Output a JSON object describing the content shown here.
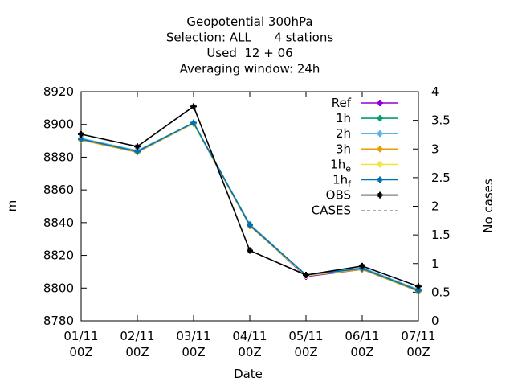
{
  "chart_data": {
    "type": "line",
    "title_lines": [
      "Geopotential 300hPa",
      "Selection: ALL      4 stations",
      "Used  12 + 06",
      "Averaging window: 24h"
    ],
    "xlabel": "Date",
    "ylabel": "m",
    "y2label": "No cases",
    "x_categories": [
      {
        "top": "01/11",
        "bottom": "00Z"
      },
      {
        "top": "02/11",
        "bottom": "00Z"
      },
      {
        "top": "03/11",
        "bottom": "00Z"
      },
      {
        "top": "04/11",
        "bottom": "00Z"
      },
      {
        "top": "05/11",
        "bottom": "00Z"
      },
      {
        "top": "06/11",
        "bottom": "00Z"
      },
      {
        "top": "07/11",
        "bottom": "00Z"
      }
    ],
    "ylim": [
      8780,
      8920
    ],
    "yticks": [
      "8780",
      "8800",
      "8820",
      "8840",
      "8860",
      "8880",
      "8900",
      "8920"
    ],
    "y2lim": [
      0,
      4
    ],
    "y2ticks": [
      "0",
      "0.5",
      "1",
      "1.5",
      "2",
      "2.5",
      "3",
      "3.5",
      "4"
    ],
    "legend_position": "top-right",
    "series": [
      {
        "name": "Ref",
        "sub": "",
        "color": "#9400d3",
        "dashed": false,
        "marker": true,
        "values": [
          8891,
          8883.5,
          8901,
          8838.5,
          8807,
          8811.5,
          8798.5
        ]
      },
      {
        "name": "1h",
        "sub": "",
        "color": "#009e73",
        "dashed": false,
        "marker": true,
        "values": [
          8891,
          8883.5,
          8900.5,
          8838.5,
          8807.5,
          8812,
          8798.5
        ]
      },
      {
        "name": "2h",
        "sub": "",
        "color": "#56b4e9",
        "dashed": false,
        "marker": true,
        "values": [
          8891.5,
          8884,
          8901,
          8839,
          8808,
          8812.5,
          8799
        ]
      },
      {
        "name": "3h",
        "sub": "",
        "color": "#e69f00",
        "dashed": false,
        "marker": true,
        "values": [
          8890.5,
          8883,
          8900.5,
          8838,
          8807.5,
          8811.5,
          8798
        ]
      },
      {
        "name": "1h",
        "sub": "e",
        "color": "#f0e442",
        "dashed": false,
        "marker": true,
        "values": [
          8891,
          8883.5,
          8900.5,
          8838.5,
          8807.5,
          8812,
          8798.5
        ]
      },
      {
        "name": "1h",
        "sub": "f",
        "color": "#0072b2",
        "dashed": false,
        "marker": true,
        "values": [
          8891,
          8883.5,
          8901,
          8838.5,
          8808,
          8812,
          8798.5
        ]
      },
      {
        "name": "OBS",
        "sub": "",
        "color": "#000000",
        "dashed": false,
        "marker": true,
        "values": [
          8894,
          8886.5,
          8911,
          8823,
          8808,
          8813.5,
          8801
        ]
      },
      {
        "name": "CASES",
        "sub": "",
        "color": "#a0a0a0",
        "dashed": true,
        "marker": false,
        "values": []
      }
    ]
  }
}
